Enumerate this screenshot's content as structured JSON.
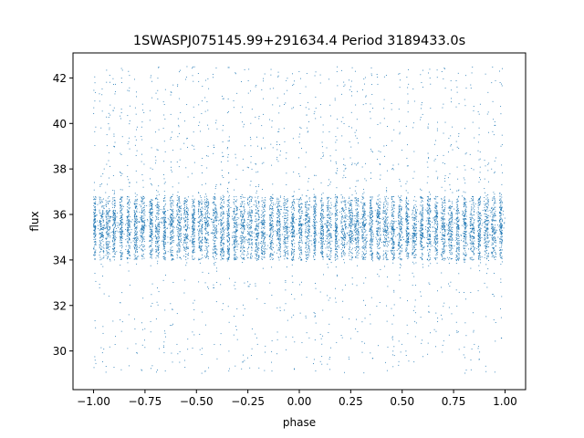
{
  "chart_data": {
    "type": "scatter",
    "title": "1SWASPJ075145.99+291634.4 Period 3189433.0s",
    "xlabel": "phase",
    "ylabel": "flux",
    "xlim": [
      -1.1,
      1.1
    ],
    "ylim": [
      28.3,
      43.1
    ],
    "xticks": [
      -1.0,
      -0.75,
      -0.5,
      -0.25,
      0.0,
      0.25,
      0.5,
      0.75,
      1.0
    ],
    "xtick_labels": [
      "−1.00",
      "−0.75",
      "−0.50",
      "−0.25",
      "0.00",
      "0.25",
      "0.50",
      "0.75",
      "1.00"
    ],
    "yticks": [
      30,
      32,
      34,
      36,
      38,
      40,
      42
    ],
    "ytick_labels": [
      "30",
      "32",
      "34",
      "36",
      "38",
      "40",
      "42"
    ],
    "grid": false,
    "marker_color": "#1f77b4",
    "phase_range": [
      -1.0,
      1.0
    ],
    "flux_core_range": [
      34.0,
      36.8
    ],
    "flux_center": 35.4,
    "flux_extremes": [
      29.0,
      42.5
    ],
    "observing_night_centers": [
      -0.995,
      -0.96,
      -0.93,
      -0.9,
      -0.865,
      -0.83,
      -0.795,
      -0.76,
      -0.72,
      -0.69,
      -0.655,
      -0.62,
      -0.585,
      -0.55,
      -0.515,
      -0.48,
      -0.45,
      -0.41,
      -0.375,
      -0.345,
      -0.31,
      -0.275,
      -0.24,
      -0.205,
      -0.175,
      -0.135,
      -0.1,
      -0.065,
      -0.03,
      0.005,
      0.04,
      0.075,
      0.11,
      0.145,
      0.18,
      0.215,
      0.25,
      0.28,
      0.315,
      0.35,
      0.385,
      0.42,
      0.455,
      0.49,
      0.525,
      0.56,
      0.595,
      0.63,
      0.665,
      0.7,
      0.735,
      0.77,
      0.805,
      0.84,
      0.875,
      0.91,
      0.945,
      0.98
    ]
  }
}
